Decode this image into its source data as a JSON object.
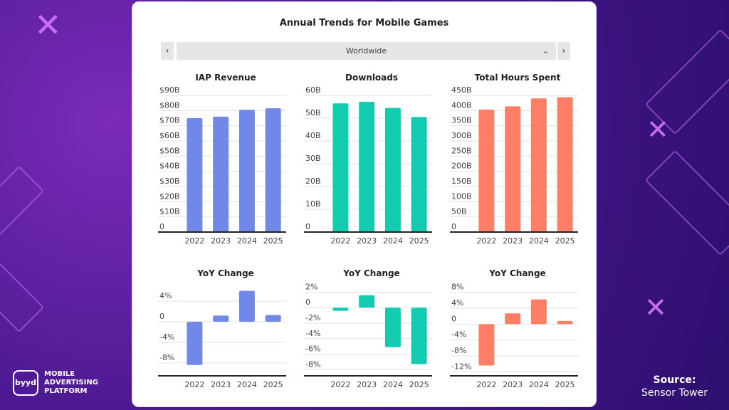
{
  "card": {
    "title": "Annual Trends for Mobile Games",
    "region": "Worldwide",
    "prev_icon": "chevron-left-icon",
    "next_icon": "chevron-right-icon"
  },
  "brand": {
    "logo": "byyd",
    "line1": "MOBILE",
    "line2": "ADVERTISING",
    "line3": "PLATFORM"
  },
  "source": {
    "label": "Source:",
    "value": "Sensor Tower"
  },
  "chart_data": [
    {
      "type": "bar",
      "title": "IAP Revenue",
      "categories": [
        "2022",
        "2023",
        "2024",
        "2025"
      ],
      "values": [
        75,
        76,
        80.5,
        81.5
      ],
      "unit": "B USD",
      "ylim": [
        0,
        90
      ],
      "yticks": [
        0,
        10,
        20,
        30,
        40,
        50,
        60,
        70,
        80,
        90
      ],
      "ytick_labels": [
        "0",
        "$10B",
        "$20B",
        "$30B",
        "$40B",
        "$50B",
        "$60B",
        "$70B",
        "$80B",
        "$90B"
      ],
      "color": "#7089e8",
      "grid": true
    },
    {
      "type": "bar",
      "title": "Downloads",
      "categories": [
        "2022",
        "2023",
        "2024",
        "2025"
      ],
      "values": [
        56.5,
        57.2,
        54.5,
        50.5
      ],
      "unit": "B",
      "ylim": [
        0,
        60
      ],
      "yticks": [
        0,
        10,
        20,
        30,
        40,
        50,
        60
      ],
      "ytick_labels": [
        "0",
        "10B",
        "20B",
        "30B",
        "40B",
        "50B",
        "60B"
      ],
      "color": "#12cbb0",
      "grid": true
    },
    {
      "type": "bar",
      "title": "Total Hours Spent",
      "categories": [
        "2022",
        "2023",
        "2024",
        "2025"
      ],
      "values": [
        403,
        414,
        440,
        444
      ],
      "unit": "B",
      "ylim": [
        0,
        450
      ],
      "yticks": [
        0,
        50,
        100,
        150,
        200,
        250,
        300,
        350,
        400,
        450
      ],
      "ytick_labels": [
        "0",
        "50B",
        "100B",
        "150B",
        "200B",
        "250B",
        "300B",
        "350B",
        "400B",
        "450B"
      ],
      "color": "#ff7f66",
      "grid": true
    },
    {
      "type": "bar",
      "title": "YoY Change",
      "categories": [
        "2022",
        "2023",
        "2024",
        "2025"
      ],
      "values": [
        -8.4,
        1.2,
        6.0,
        1.3
      ],
      "unit": "%",
      "ylim": [
        -10.5,
        6.5
      ],
      "yticks": [
        4,
        0,
        -4,
        -8
      ],
      "ytick_labels": [
        "4%",
        "0",
        "-4%",
        "-8%"
      ],
      "color": "#7089e8",
      "grid": true
    },
    {
      "type": "bar",
      "title": "YoY Change",
      "categories": [
        "2022",
        "2023",
        "2024",
        "2025"
      ],
      "values": [
        -0.4,
        1.6,
        -5.1,
        -7.3
      ],
      "unit": "%",
      "ylim": [
        -8.8,
        2.5
      ],
      "yticks": [
        2,
        0,
        -2,
        -4,
        -6,
        -8
      ],
      "ytick_labels": [
        "2%",
        "0",
        "-2%",
        "-4%",
        "-6%",
        "-8%"
      ],
      "color": "#12cbb0",
      "grid": true
    },
    {
      "type": "bar",
      "title": "YoY Change",
      "categories": [
        "2022",
        "2023",
        "2024",
        "2025"
      ],
      "values": [
        -10.4,
        2.7,
        6.2,
        0.8
      ],
      "unit": "%",
      "ylim": [
        -13,
        9
      ],
      "yticks": [
        8,
        4,
        0,
        -4,
        -8,
        -12
      ],
      "ytick_labels": [
        "8%",
        "4%",
        "0",
        "-4%",
        "-8%",
        "-12%"
      ],
      "color": "#ff7f66",
      "grid": true
    }
  ]
}
